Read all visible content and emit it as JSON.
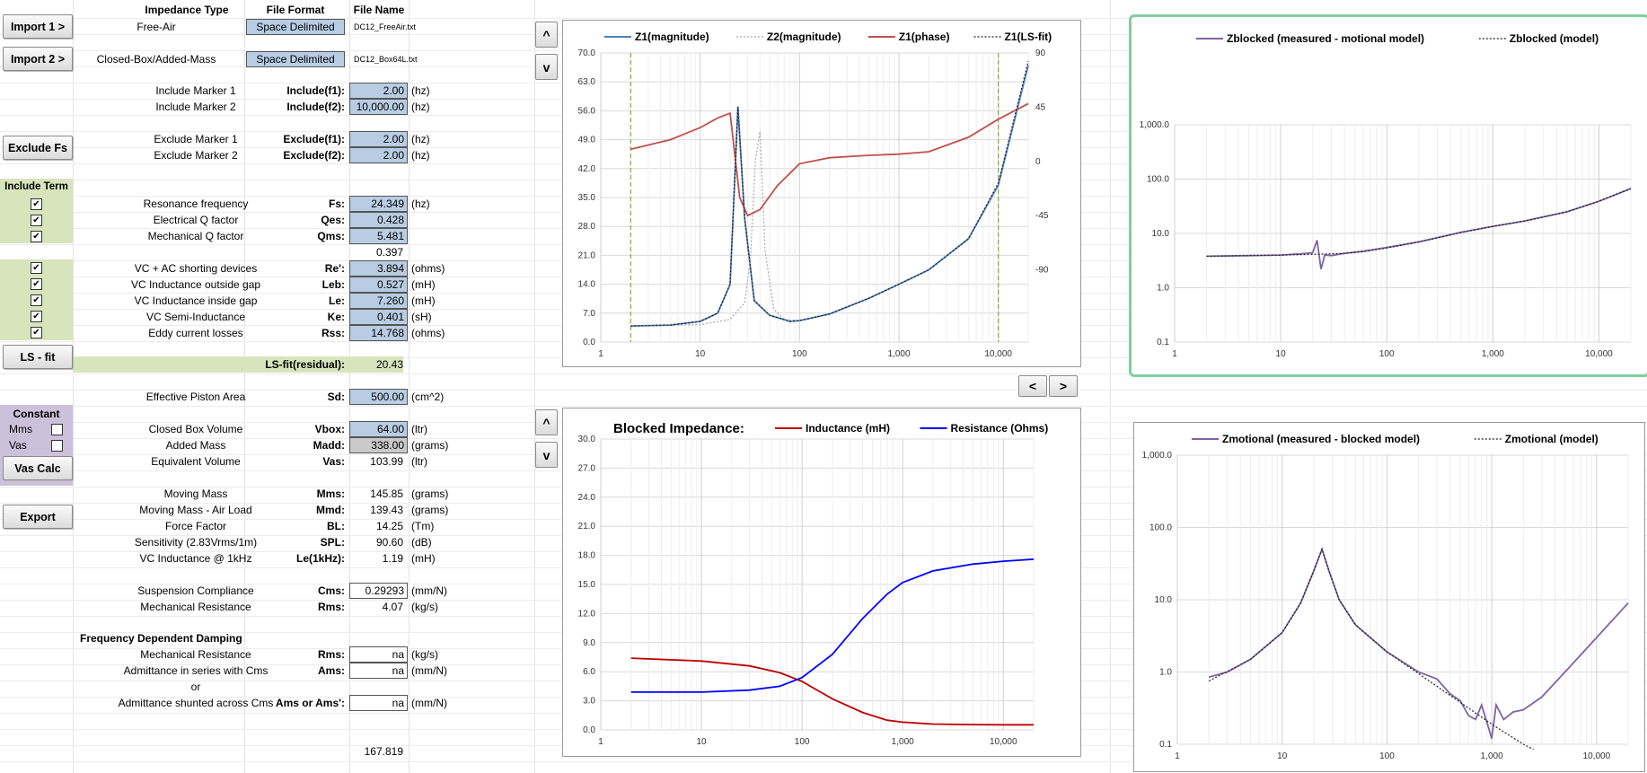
{
  "headers": {
    "impedance_type": "Impedance Type",
    "file_format": "File Format",
    "file_name": "File Name"
  },
  "imports": [
    {
      "button": "Import 1 >",
      "type": "Free-Air",
      "format": "Space Delimited",
      "file": "DC12_FreeAir.txt"
    },
    {
      "button": "Import 2 >",
      "type": "Closed-Box/Added-Mass",
      "format": "Space Delimited",
      "file": "DC12_Box64L.txt"
    }
  ],
  "include_markers": [
    {
      "label": "Include Marker 1",
      "sym": "Include(f1):",
      "value": "2.00",
      "unit": "(hz)"
    },
    {
      "label": "Include Marker 2",
      "sym": "Include(f2):",
      "value": "10,000.00",
      "unit": "(hz)"
    }
  ],
  "exclude_button": "Exclude Fs",
  "exclude_markers": [
    {
      "label": "Exclude Marker 1",
      "sym": "Exclude(f1):",
      "value": "2.00",
      "unit": "(hz)"
    },
    {
      "label": "Exclude Marker 2",
      "sym": "Exclude(f2):",
      "value": "2.00",
      "unit": "(hz)"
    }
  ],
  "include_term": "Include Term",
  "check_mark": "✔",
  "resonance_params": [
    {
      "label": "Resonance frequency",
      "sym": "Fs:",
      "value": "24.349",
      "unit": "(hz)"
    },
    {
      "label": "Electrical Q factor",
      "sym": "Qes:",
      "value": "0.428",
      "unit": ""
    },
    {
      "label": "Mechanical Q factor",
      "sym": "Qms:",
      "value": "5.481",
      "unit": ""
    }
  ],
  "qts_value": "0.397",
  "electrical_params": [
    {
      "label": "VC + AC shorting devices",
      "sym": "Re':",
      "value": "3.894",
      "unit": "(ohms)"
    },
    {
      "label": "VC Inductance outside gap",
      "sym": "Leb:",
      "value": "0.527",
      "unit": "(mH)"
    },
    {
      "label": "VC Inductance inside gap",
      "sym": "Le:",
      "value": "7.260",
      "unit": "(mH)"
    },
    {
      "label": "VC Semi-Inductance",
      "sym": "Ke:",
      "value": "0.401",
      "unit": "(sH)"
    },
    {
      "label": "Eddy current losses",
      "sym": "Rss:",
      "value": "14.768",
      "unit": "(ohms)"
    }
  ],
  "ls_fit": {
    "button": "LS - fit",
    "label": "LS-fit(residual):",
    "value": "20.43"
  },
  "piston": {
    "label": "Effective Piston Area",
    "sym": "Sd:",
    "value": "500.00",
    "unit": "(cm^2)"
  },
  "constant": {
    "title": "Constant",
    "mms": "Mms",
    "vas": "Vas",
    "button": "Vas Calc"
  },
  "box_params": [
    {
      "label": "Closed Box Volume",
      "sym": "Vbox:",
      "value": "64.00",
      "unit": "(ltr)",
      "style": "blue"
    },
    {
      "label": "Added Mass",
      "sym": "Madd:",
      "value": "338.00",
      "unit": "(grams)",
      "style": "gray"
    },
    {
      "label": "Equivalent Volume",
      "sym": "Vas:",
      "value": "103.99",
      "unit": "(ltr)",
      "style": "plain"
    }
  ],
  "export_button": "Export",
  "mass_params": [
    {
      "label": "Moving Mass",
      "sym": "Mms:",
      "value": "145.85",
      "unit": "(grams)"
    },
    {
      "label": "Moving Mass - Air Load",
      "sym": "Mmd:",
      "value": "139.43",
      "unit": "(grams)"
    },
    {
      "label": "Force Factor",
      "sym": "BL:",
      "value": "14.25",
      "unit": "(Tm)"
    },
    {
      "label": "Sensitivity (2.83Vrms/1m)",
      "sym": "SPL:",
      "value": "90.60",
      "unit": "(dB)"
    },
    {
      "label": "VC Inductance @ 1kHz",
      "sym": "Le(1kHz):",
      "value": "1.19",
      "unit": "(mH)"
    }
  ],
  "susp_params": [
    {
      "label": "Suspension Compliance",
      "sym": "Cms:",
      "value": "0.29293",
      "unit": "(mm/N)"
    },
    {
      "label": "Mechanical Resistance",
      "sym": "Rms:",
      "value": "4.07",
      "unit": "(kg/s)"
    }
  ],
  "fdd": {
    "title": "Frequency Dependent Damping",
    "rms_label": "Mechanical Resistance",
    "rms_sym": "Rms:",
    "rms_value": "na",
    "rms_unit": "(kg/s)",
    "ams_label": "Admittance in series with Cms",
    "ams_sym": "Ams:",
    "ams_value": "na",
    "ams_unit": "(mm/N)",
    "or": "or",
    "amss_label": "Admittance shunted across Cms",
    "amss_sym": "Ams or Ams':",
    "amss_value": "na",
    "amss_unit": "(mm/N)"
  },
  "bottom_value": "167.819",
  "nav": {
    "up": "^",
    "down": "v",
    "left": "<",
    "right": ">"
  },
  "colors": {
    "input_blue": "#b8cce4",
    "green_band": "#d8e4bc",
    "purple_band": "#ccc0da",
    "selection": "#7fcf9f"
  },
  "chart_data": [
    {
      "id": "impedance",
      "type": "line",
      "x_scale": "log",
      "xlim": [
        1,
        20000
      ],
      "ylim": [
        0,
        70
      ],
      "y2lim": [
        -150,
        90
      ],
      "x_ticks": [
        "1",
        "10",
        "100",
        "1,000",
        "10,000"
      ],
      "y_ticks": [
        "0.0",
        "7.0",
        "14.0",
        "21.0",
        "28.0",
        "35.0",
        "42.0",
        "49.0",
        "56.0",
        "63.0",
        "70.0"
      ],
      "y2_ticks": [
        "90",
        "45",
        "0",
        "-45",
        "-90"
      ],
      "markers_x": [
        2,
        10000
      ],
      "series": [
        {
          "name": "Z1(magnitude)",
          "color": "#4f81bd",
          "x": [
            2,
            5,
            10,
            15,
            20,
            24,
            28,
            35,
            50,
            80,
            100,
            200,
            500,
            1000,
            2000,
            5000,
            10000,
            20000
          ],
          "y": [
            3.9,
            4.1,
            5.0,
            7.0,
            14.0,
            57.0,
            30.0,
            10.0,
            6.5,
            5.0,
            5.2,
            6.8,
            10.6,
            14.0,
            17.5,
            25.0,
            38.0,
            67.0
          ]
        },
        {
          "name": "Z2(magnitude)",
          "color": "#a6a6a6",
          "x": [
            2,
            10,
            20,
            28,
            32,
            36,
            40,
            45,
            55,
            70,
            100
          ],
          "y": [
            3.9,
            4.2,
            5.5,
            9.5,
            20.0,
            44.0,
            51.0,
            22.0,
            8.0,
            5.5,
            5.2
          ]
        },
        {
          "name": "Z1(phase)",
          "color": "#c0504d",
          "x": [
            2,
            5,
            10,
            15,
            20,
            25,
            30,
            40,
            60,
            100,
            200,
            500,
            1000,
            2000,
            5000,
            10000,
            20000
          ],
          "y": [
            10,
            18,
            28,
            36,
            40,
            -30,
            -45,
            -40,
            -20,
            -2,
            3,
            5,
            6,
            8,
            20,
            35,
            48
          ]
        },
        {
          "name": "Z1(LS-fit)",
          "color": "#1f1f1f",
          "x": [
            2,
            5,
            10,
            15,
            20,
            24,
            28,
            35,
            50,
            80,
            100,
            200,
            500,
            1000,
            2000,
            5000,
            10000,
            20000
          ],
          "y": [
            3.9,
            4.1,
            5.0,
            7.0,
            14.0,
            57.0,
            30.0,
            10.0,
            6.5,
            5.0,
            5.2,
            6.8,
            10.6,
            14.0,
            17.5,
            25.0,
            38.5,
            68.0
          ]
        }
      ]
    },
    {
      "id": "zblocked",
      "type": "line",
      "x_scale": "log",
      "y_scale": "log",
      "xlim": [
        1,
        20000
      ],
      "ylim": [
        0.1,
        1000
      ],
      "x_ticks": [
        "1",
        "10",
        "100",
        "1,000",
        "10,000"
      ],
      "y_ticks": [
        "0.1",
        "1.0",
        "10.0",
        "100.0",
        "1,000.0"
      ],
      "series": [
        {
          "name": "Zblocked (measured - motional model)",
          "color": "#8064a2",
          "x": [
            2,
            5,
            10,
            15,
            20,
            22,
            24,
            26,
            30,
            40,
            60,
            100,
            200,
            500,
            1000,
            2000,
            5000,
            10000,
            20000
          ],
          "y": [
            3.8,
            3.9,
            4.0,
            4.2,
            4.4,
            7.5,
            2.2,
            4.0,
            3.9,
            4.3,
            4.7,
            5.5,
            7.0,
            10.5,
            13.5,
            17.0,
            25.0,
            39.0,
            67.0
          ]
        },
        {
          "name": "Zblocked (model)",
          "color": "#1f1f1f",
          "x": [
            2,
            5,
            10,
            20,
            40,
            60,
            100,
            200,
            500,
            1000,
            2000,
            5000,
            10000,
            20000
          ],
          "y": [
            3.8,
            3.9,
            4.0,
            4.1,
            4.3,
            4.6,
            5.4,
            6.9,
            10.4,
            13.4,
            17.0,
            25.0,
            39.0,
            67.0
          ]
        }
      ]
    },
    {
      "id": "blocked",
      "type": "line",
      "title": "Blocked Impedance:",
      "x_scale": "log",
      "xlim": [
        1,
        20000
      ],
      "ylim": [
        0,
        30
      ],
      "x_ticks": [
        "1",
        "10",
        "100",
        "1,000",
        "10,000"
      ],
      "y_ticks": [
        "0.0",
        "3.0",
        "6.0",
        "9.0",
        "12.0",
        "15.0",
        "18.0",
        "21.0",
        "24.0",
        "27.0",
        "30.0"
      ],
      "series": [
        {
          "name": "Inductance (mH)",
          "color": "#c00000",
          "x": [
            2,
            10,
            30,
            60,
            100,
            200,
            400,
            700,
            1000,
            2000,
            5000,
            10000,
            20000
          ],
          "y": [
            7.4,
            7.1,
            6.6,
            5.9,
            5.0,
            3.2,
            1.8,
            1.0,
            0.8,
            0.6,
            0.55,
            0.53,
            0.53
          ]
        },
        {
          "name": "Resistance (Ohms)",
          "color": "#0000ff",
          "x": [
            2,
            10,
            30,
            60,
            100,
            200,
            400,
            700,
            1000,
            2000,
            5000,
            10000,
            20000
          ],
          "y": [
            3.9,
            3.9,
            4.1,
            4.5,
            5.4,
            7.8,
            11.5,
            14.0,
            15.2,
            16.4,
            17.1,
            17.4,
            17.6
          ]
        }
      ]
    },
    {
      "id": "zmotional",
      "type": "line",
      "x_scale": "log",
      "y_scale": "log",
      "xlim": [
        1,
        20000
      ],
      "ylim": [
        0.1,
        1000
      ],
      "x_ticks": [
        "1",
        "10",
        "100",
        "1,000",
        "10,000"
      ],
      "y_ticks": [
        "0.1",
        "1.0",
        "10.0",
        "100.0",
        "1,000.0"
      ],
      "series": [
        {
          "name": "Zmotional (measured - blocked model)",
          "color": "#8064a2",
          "x": [
            2,
            3,
            5,
            10,
            15,
            20,
            24,
            28,
            35,
            50,
            100,
            200,
            300,
            400,
            500,
            600,
            700,
            800,
            900,
            1000,
            1100,
            1300,
            1600,
            2000,
            3000,
            5000,
            10000,
            20000
          ],
          "y": [
            0.85,
            1.0,
            1.5,
            3.5,
            9.0,
            25.0,
            50.0,
            25.0,
            10.0,
            4.5,
            1.9,
            1.0,
            0.8,
            0.5,
            0.4,
            0.25,
            0.22,
            0.35,
            0.2,
            0.12,
            0.35,
            0.22,
            0.28,
            0.3,
            0.45,
            1.0,
            3.0,
            9.0
          ]
        },
        {
          "name": "Zmotional (model)",
          "color": "#1f1f1f",
          "x": [
            2,
            5,
            10,
            15,
            20,
            24,
            28,
            35,
            50,
            100,
            200,
            500,
            1000,
            2000,
            2500
          ],
          "y": [
            0.75,
            1.5,
            3.5,
            9.0,
            25.0,
            50.0,
            25.0,
            10.0,
            4.5,
            1.9,
            0.95,
            0.38,
            0.19,
            0.1,
            0.085
          ]
        }
      ]
    }
  ]
}
